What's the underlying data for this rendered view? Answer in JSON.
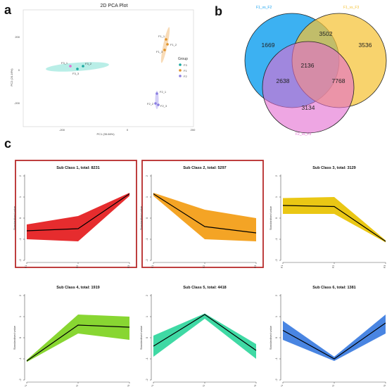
{
  "panels": {
    "a": "a",
    "b": "b",
    "c": "c"
  },
  "pca": {
    "title": "2D PCA Plot",
    "xlabel": "PC1 (35.66%)",
    "ylabel": "PC2 (20.16%)",
    "xticks": [
      "-200",
      "0",
      "200"
    ],
    "yticks": [
      "200",
      "0",
      "-200"
    ],
    "legend_title": "Group",
    "groups": [
      {
        "name": "F3",
        "color": "#1aa8a0"
      },
      {
        "name": "F1",
        "color": "#e0922a"
      },
      {
        "name": "F2",
        "color": "#8a7ee0"
      }
    ],
    "points": [
      {
        "label": "F3_1",
        "group": "F3"
      },
      {
        "label": "F3_2",
        "group": "F3"
      },
      {
        "label": "F3_3",
        "group": "F3"
      },
      {
        "label": "F1_1",
        "group": "F1"
      },
      {
        "label": "F1_2",
        "group": "F1"
      },
      {
        "label": "F1_3",
        "group": "F1"
      },
      {
        "label": "F2_1",
        "group": "F2"
      },
      {
        "label": "F2_2",
        "group": "F2"
      },
      {
        "label": "F2_3",
        "group": "F2"
      }
    ]
  },
  "venn": {
    "sets": [
      {
        "name": "F1_vs_F2",
        "color": "#1aa3f0"
      },
      {
        "name": "F1_vs_F3",
        "color": "#f5c235"
      },
      {
        "name": "F2_vs_F3",
        "color": "#e36ad1"
      }
    ],
    "counts": {
      "only_a": "1669",
      "only_b": "3536",
      "only_c": "3134",
      "ab": "3502",
      "ac": "2638",
      "bc": "7768",
      "abc": "2136"
    }
  },
  "chart_data": [
    {
      "type": "line",
      "title": "Sub Class 1, total: 8231",
      "x": [
        "F1",
        "F2",
        "F3"
      ],
      "ylabel": "Standardised value",
      "ylim": [
        -2,
        2
      ],
      "yticks": [
        "2",
        "1",
        "0",
        "-1",
        "-2"
      ],
      "mean": [
        -0.6,
        -0.5,
        1.15
      ],
      "upper": [
        -0.3,
        0.1,
        1.2
      ],
      "lower": [
        -1.0,
        -1.1,
        1.05
      ],
      "color": "#e41a1c",
      "highlighted": true
    },
    {
      "type": "line",
      "title": "Sub Class 2, total: 5297",
      "x": [
        "F1",
        "F2",
        "F3"
      ],
      "ylabel": "Standardised value",
      "ylim": [
        -2,
        2
      ],
      "yticks": [
        "2",
        "1",
        "0",
        "-1",
        "-2"
      ],
      "mean": [
        1.15,
        -0.4,
        -0.7
      ],
      "upper": [
        1.2,
        0.4,
        0.0
      ],
      "lower": [
        1.05,
        -1.0,
        -1.1
      ],
      "color": "#f39c12",
      "highlighted": true
    },
    {
      "type": "line",
      "title": "Sub Class 3, total: 3129",
      "x": [
        "F1",
        "F2",
        "F3"
      ],
      "ylabel": "Standardised value",
      "ylim": [
        -2,
        2
      ],
      "yticks": [
        "2",
        "1",
        "0",
        "-1",
        "-2"
      ],
      "mean": [
        0.6,
        0.55,
        -1.1
      ],
      "upper": [
        0.95,
        1.0,
        -1.05
      ],
      "lower": [
        0.2,
        0.2,
        -1.15
      ],
      "color": "#e8c200",
      "highlighted": false
    },
    {
      "type": "line",
      "title": "Sub Class 4, total: 1919",
      "x": [
        "F1",
        "F2",
        "F3"
      ],
      "ylabel": "Standardised value",
      "ylim": [
        -2,
        2
      ],
      "yticks": [
        "2",
        "1",
        "0",
        "-1",
        "-2"
      ],
      "mean": [
        -1.1,
        0.6,
        0.5
      ],
      "upper": [
        -1.05,
        1.1,
        1.0
      ],
      "lower": [
        -1.15,
        0.2,
        -0.1
      ],
      "color": "#7ed321",
      "highlighted": false
    },
    {
      "type": "line",
      "title": "Sub Class 5, total: 4418",
      "x": [
        "F1",
        "F2",
        "F3"
      ],
      "ylabel": "Standardised value",
      "ylim": [
        -2,
        2
      ],
      "yticks": [
        "2",
        "1",
        "0",
        "-1",
        "-2"
      ],
      "mean": [
        -0.4,
        1.1,
        -0.6
      ],
      "upper": [
        0.1,
        1.15,
        -0.3
      ],
      "lower": [
        -0.9,
        0.9,
        -1.0
      ],
      "color": "#2fd69c",
      "highlighted": false
    },
    {
      "type": "line",
      "title": "Sub Class 6, total: 1381",
      "x": [
        "F1",
        "F2",
        "F3"
      ],
      "ylabel": "Standardised value",
      "ylim": [
        -2,
        2
      ],
      "yticks": [
        "2",
        "1",
        "0",
        "-1",
        "-2"
      ],
      "mean": [
        0.35,
        -1.0,
        0.7
      ],
      "upper": [
        0.8,
        -0.9,
        1.1
      ],
      "lower": [
        -0.1,
        -1.1,
        0.2
      ],
      "color": "#3a7be0",
      "highlighted": false
    }
  ]
}
